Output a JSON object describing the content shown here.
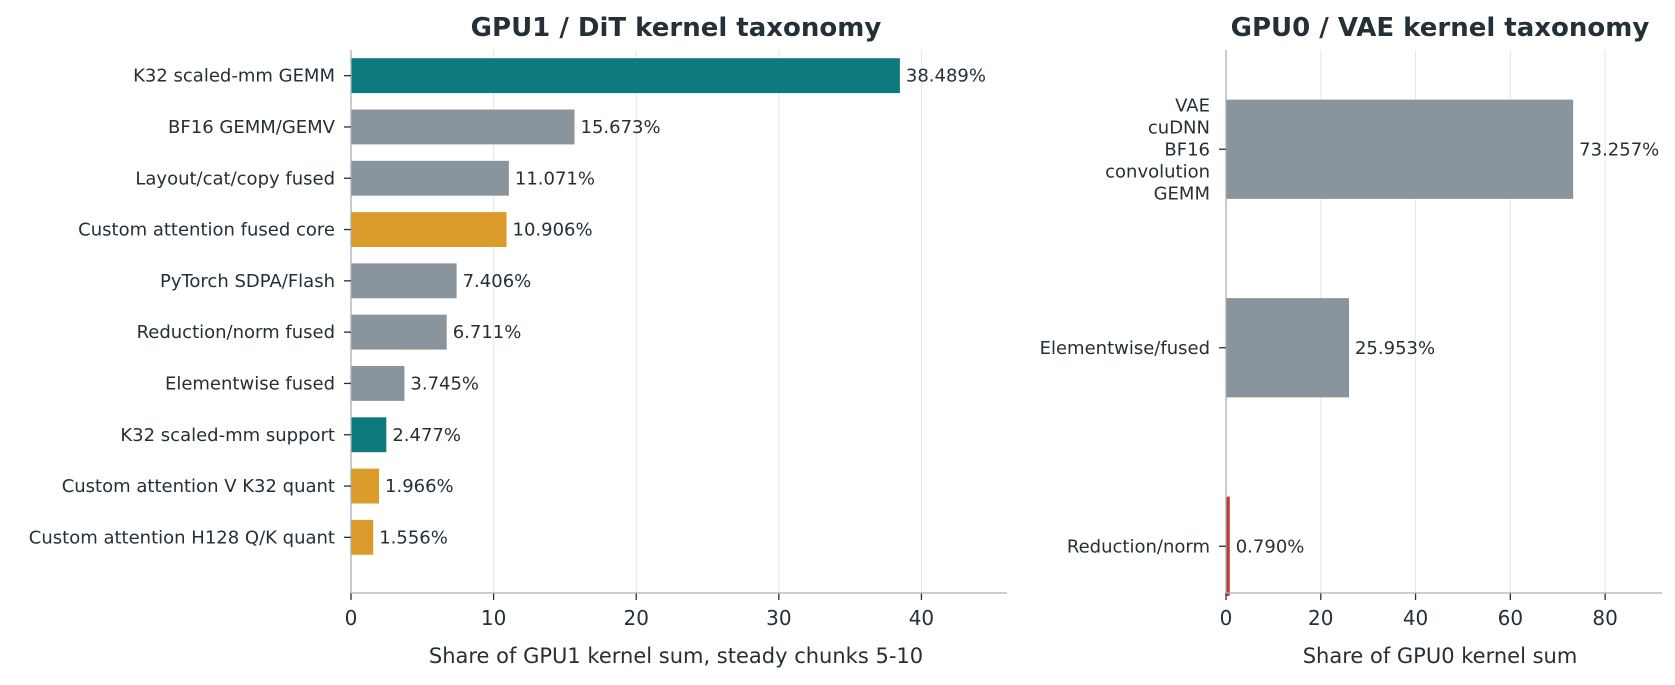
{
  "chart_data": [
    {
      "type": "bar",
      "orientation": "horizontal",
      "title": "GPU1 / DiT kernel taxonomy",
      "xlabel": "Share of GPU1 kernel sum, steady chunks 5-10",
      "ylabel": "",
      "xlim": [
        0,
        46
      ],
      "xticks": [
        0,
        10,
        20,
        30,
        40
      ],
      "grid": "x",
      "categories": [
        "K32 scaled-mm GEMM",
        "BF16 GEMM/GEMV",
        "Layout/cat/copy fused",
        "Custom attention fused core",
        "PyTorch SDPA/Flash",
        "Reduction/norm fused",
        "Elementwise fused",
        "K32 scaled-mm support",
        "Custom attention V K32 quant",
        "Custom attention H128 Q/K quant"
      ],
      "values": [
        38.489,
        15.673,
        11.071,
        10.906,
        7.406,
        6.711,
        3.745,
        2.477,
        1.966,
        1.556
      ],
      "value_labels": [
        "38.489%",
        "15.673%",
        "11.071%",
        "10.906%",
        "7.406%",
        "6.711%",
        "3.745%",
        "2.477%",
        "1.966%",
        "1.556%"
      ],
      "colors": [
        "#0d7a80",
        "#8a949d",
        "#8a949d",
        "#db9b2b",
        "#8a949d",
        "#8a949d",
        "#8a949d",
        "#0d7a80",
        "#db9b2b",
        "#db9b2b"
      ]
    },
    {
      "type": "bar",
      "orientation": "horizontal",
      "title": "GPU0 / VAE kernel taxonomy",
      "xlabel": "Share of GPU0 kernel sum",
      "ylabel": "",
      "xlim": [
        0,
        92
      ],
      "xticks": [
        0,
        20,
        40,
        60,
        80
      ],
      "grid": "x",
      "categories": [
        "VAE\ncuDNN\nBF16\nconvolution\nGEMM",
        "Elementwise/fused",
        "Reduction/norm"
      ],
      "values": [
        73.257,
        25.953,
        0.79
      ],
      "value_labels": [
        "73.257%",
        "25.953%",
        "0.790%"
      ],
      "colors": [
        "#8a949d",
        "#8a949d",
        "#c0392b"
      ]
    }
  ]
}
